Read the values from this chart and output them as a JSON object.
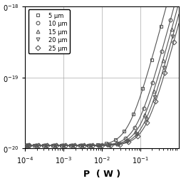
{
  "title": "",
  "xlabel": "P  ( W )",
  "ylabel": "",
  "xlim": [
    0.0001,
    1.0
  ],
  "ylim": [
    1e-20,
    1e-18
  ],
  "ytick_vals": [
    1e-20,
    1e-19,
    1e-18
  ],
  "xtick_vals": [
    0.0001,
    0.001,
    0.01,
    0.1
  ],
  "series": [
    {
      "label": "5 μm",
      "marker": "s",
      "color": "#555555"
    },
    {
      "label": "10 μm",
      "marker": "o",
      "color": "#555555"
    },
    {
      "label": "15 μm",
      "marker": "^",
      "color": "#555555"
    },
    {
      "label": "20 μm",
      "marker": "v",
      "color": "#555555"
    },
    {
      "label": "25 μm",
      "marker": "D",
      "color": "#555555"
    }
  ],
  "background_color": "#ffffff",
  "grid_color": "#aaaaaa",
  "noise_floor": 1.1e-20,
  "p_knee": [
    0.05,
    0.08,
    0.1,
    0.12,
    0.14
  ],
  "slope": 2.0
}
